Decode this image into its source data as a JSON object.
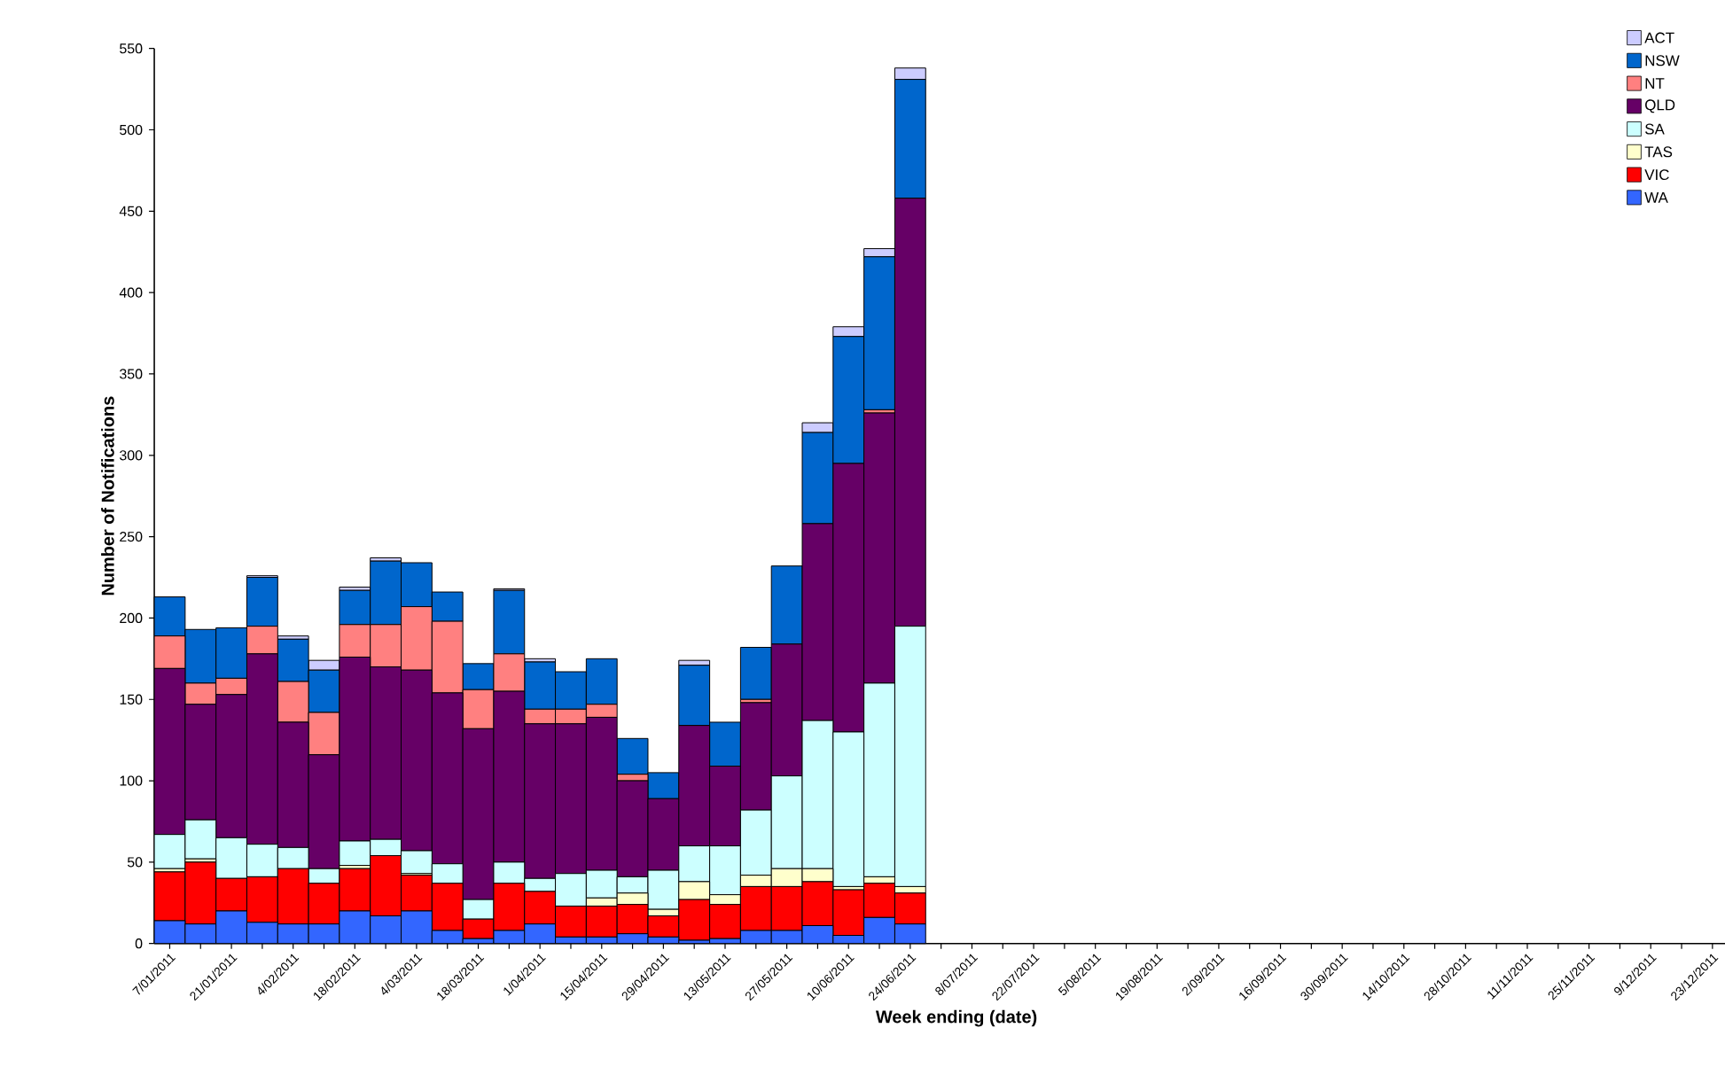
{
  "chart_data": {
    "type": "bar",
    "stacked": true,
    "xlabel": "Week ending (date)",
    "ylabel": "Number of Notifications",
    "legend": "top right",
    "categories": [
      "7/01/2011",
      null,
      "21/01/2011",
      null,
      "4/02/2011",
      null,
      "18/02/2011",
      null,
      "4/03/2011",
      null,
      "18/03/2011",
      null,
      "1/04/2011",
      null,
      "15/04/2011",
      null,
      "29/04/2011",
      null,
      "13/05/2011",
      null,
      "27/05/2011",
      null,
      "10/06/2011",
      null,
      "24/06/2011",
      null,
      "8/07/2011",
      null,
      "22/07/2011",
      null,
      "5/08/2011",
      null,
      "19/08/2011",
      null,
      "2/09/2011",
      null,
      "16/09/2011",
      null,
      "30/09/2011",
      null,
      "14/10/2011",
      null,
      "28/10/2011",
      null,
      "11/11/2011",
      null,
      "25/11/2011",
      null,
      "9/12/2011",
      null,
      "23/12/2011",
      null
    ],
    "ylim": [
      0,
      550
    ],
    "yticks": [
      0,
      50,
      100,
      150,
      200,
      250,
      300,
      350,
      400,
      450,
      500,
      550
    ],
    "series": [
      {
        "name": "WA",
        "color": "#3366ff",
        "values": [
          14,
          12,
          20,
          13,
          12,
          12,
          20,
          17,
          20,
          8,
          3,
          8,
          12,
          4,
          4,
          6,
          4,
          2,
          3,
          8,
          8,
          11,
          5,
          16,
          12,
          null,
          null,
          null,
          null,
          null,
          null,
          null,
          null,
          null,
          null,
          null,
          null,
          null,
          null,
          null,
          null,
          null,
          null,
          null,
          null,
          null,
          null,
          null,
          null,
          null,
          null,
          null
        ]
      },
      {
        "name": "VIC",
        "color": "#ff0000",
        "values": [
          30,
          38,
          20,
          28,
          34,
          25,
          26,
          37,
          22,
          29,
          12,
          29,
          20,
          19,
          19,
          18,
          13,
          25,
          21,
          27,
          27,
          27,
          28,
          21,
          19,
          null,
          null,
          null,
          null,
          null,
          null,
          null,
          null,
          null,
          null,
          null,
          null,
          null,
          null,
          null,
          null,
          null,
          null,
          null,
          null,
          null,
          null,
          null,
          null,
          null,
          null,
          null
        ]
      },
      {
        "name": "TAS",
        "color": "#ffffcc",
        "values": [
          2,
          2,
          0,
          0,
          0,
          null,
          2,
          0,
          1,
          null,
          0,
          null,
          null,
          0,
          5,
          7,
          4,
          11,
          6,
          7,
          11,
          8,
          2,
          4,
          4,
          null,
          null,
          null,
          null,
          null,
          null,
          null,
          null,
          null,
          null,
          null,
          null,
          null,
          null,
          null,
          null,
          null,
          null,
          null,
          null,
          null,
          null,
          null,
          null,
          null,
          null,
          null
        ]
      },
      {
        "name": "SA",
        "color": "#ccffff",
        "values": [
          21,
          24,
          25,
          20,
          13,
          9,
          15,
          10,
          14,
          12,
          12,
          13,
          8,
          20,
          17,
          10,
          24,
          22,
          30,
          40,
          57,
          91,
          95,
          119,
          160,
          null,
          null,
          null,
          null,
          null,
          null,
          null,
          null,
          null,
          null,
          null,
          null,
          null,
          null,
          null,
          null,
          null,
          null,
          null,
          null,
          null,
          null,
          null,
          null,
          null,
          null,
          null
        ]
      },
      {
        "name": "QLD",
        "color": "#660066",
        "values": [
          102,
          71,
          88,
          117,
          77,
          70,
          113,
          106,
          111,
          105,
          105,
          105,
          95,
          92,
          94,
          59,
          44,
          74,
          49,
          66,
          81,
          121,
          165,
          166,
          263,
          null,
          null,
          null,
          null,
          null,
          null,
          null,
          null,
          null,
          null,
          null,
          null,
          null,
          null,
          null,
          null,
          null,
          null,
          null,
          null,
          null,
          null,
          null,
          null,
          null,
          null,
          null
        ]
      },
      {
        "name": "NT",
        "color": "#ff8080",
        "values": [
          20,
          13,
          10,
          17,
          25,
          26,
          20,
          26,
          39,
          44,
          24,
          23,
          9,
          9,
          8,
          4,
          0,
          0,
          0,
          2,
          0,
          0,
          0,
          2,
          0,
          null,
          null,
          null,
          null,
          null,
          null,
          null,
          null,
          null,
          null,
          null,
          null,
          null,
          null,
          null,
          null,
          null,
          null,
          null,
          null,
          null,
          null,
          null,
          null,
          null,
          null,
          null
        ]
      },
      {
        "name": "NSW",
        "color": "#0066cc",
        "values": [
          24,
          33,
          31,
          30,
          26,
          26,
          21,
          39,
          27,
          18,
          16,
          39,
          29,
          23,
          28,
          22,
          16,
          37,
          27,
          32,
          48,
          56,
          78,
          94,
          73,
          null,
          null,
          null,
          null,
          null,
          null,
          null,
          null,
          null,
          null,
          null,
          null,
          null,
          null,
          null,
          null,
          null,
          null,
          null,
          null,
          null,
          null,
          null,
          null,
          null,
          null,
          null
        ]
      },
      {
        "name": "ACT",
        "color": "#ccccff",
        "values": [
          0,
          0,
          0,
          1,
          2,
          6,
          2,
          2,
          null,
          0,
          0,
          1,
          2,
          0,
          0,
          0,
          0,
          3,
          0,
          0,
          0,
          6,
          6,
          5,
          7,
          null,
          null,
          null,
          null,
          null,
          null,
          null,
          null,
          null,
          null,
          null,
          null,
          null,
          null,
          null,
          null,
          null,
          null,
          null,
          null,
          null,
          null,
          null,
          null,
          null,
          null,
          null
        ]
      }
    ]
  }
}
